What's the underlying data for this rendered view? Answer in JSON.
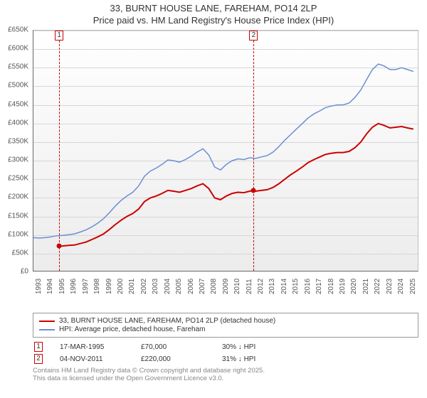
{
  "title_line1": "33, BURNT HOUSE LANE, FAREHAM, PO14 2LP",
  "title_line2": "Price paid vs. HM Land Registry's House Price Index (HPI)",
  "chart": {
    "type": "line",
    "background_gradient_top": "#ffffff",
    "background_gradient_bottom": "#ececec",
    "grid_color": "#d6d6d6",
    "axis_color": "#666666",
    "ylabel_prefix": "£",
    "ylim": [
      0,
      650000
    ],
    "ytick_step": 50000,
    "ytick_labels": [
      "£0",
      "£50K",
      "£100K",
      "£150K",
      "£200K",
      "£250K",
      "£300K",
      "£350K",
      "£400K",
      "£450K",
      "£500K",
      "£550K",
      "£600K",
      "£650K"
    ],
    "xlim": [
      1993,
      2026
    ],
    "xticks": [
      1993,
      1994,
      1995,
      1996,
      1997,
      1998,
      1999,
      2000,
      2001,
      2002,
      2003,
      2004,
      2005,
      2006,
      2007,
      2008,
      2009,
      2010,
      2011,
      2012,
      2013,
      2014,
      2015,
      2016,
      2017,
      2018,
      2019,
      2020,
      2021,
      2022,
      2023,
      2024,
      2025
    ],
    "label_fontsize": 10,
    "title_fontsize": 13,
    "series": [
      {
        "name": "price_paid",
        "label": "33, BURNT HOUSE LANE, FAREHAM, PO14 2LP (detached house)",
        "color": "#cc0000",
        "line_width": 2,
        "data": [
          [
            1995.2,
            70000
          ],
          [
            1995.5,
            70500
          ],
          [
            1996,
            72000
          ],
          [
            1996.5,
            73000
          ],
          [
            1997,
            77000
          ],
          [
            1997.5,
            81000
          ],
          [
            1998,
            88000
          ],
          [
            1998.5,
            95000
          ],
          [
            1999,
            103000
          ],
          [
            1999.5,
            115000
          ],
          [
            2000,
            128000
          ],
          [
            2000.5,
            140000
          ],
          [
            2001,
            150000
          ],
          [
            2001.5,
            158000
          ],
          [
            2002,
            170000
          ],
          [
            2002.5,
            190000
          ],
          [
            2003,
            200000
          ],
          [
            2003.5,
            205000
          ],
          [
            2004,
            212000
          ],
          [
            2004.5,
            220000
          ],
          [
            2005,
            218000
          ],
          [
            2005.5,
            215000
          ],
          [
            2006,
            220000
          ],
          [
            2006.5,
            225000
          ],
          [
            2007,
            232000
          ],
          [
            2007.5,
            238000
          ],
          [
            2008,
            225000
          ],
          [
            2008.5,
            200000
          ],
          [
            2009,
            195000
          ],
          [
            2009.5,
            205000
          ],
          [
            2010,
            212000
          ],
          [
            2010.5,
            215000
          ],
          [
            2011,
            214000
          ],
          [
            2011.5,
            218000
          ],
          [
            2011.84,
            220000
          ],
          [
            2012,
            218000
          ],
          [
            2012.5,
            220000
          ],
          [
            2013,
            222000
          ],
          [
            2013.5,
            228000
          ],
          [
            2014,
            238000
          ],
          [
            2014.5,
            250000
          ],
          [
            2015,
            262000
          ],
          [
            2015.5,
            272000
          ],
          [
            2016,
            283000
          ],
          [
            2016.5,
            295000
          ],
          [
            2017,
            303000
          ],
          [
            2017.5,
            310000
          ],
          [
            2018,
            317000
          ],
          [
            2018.5,
            320000
          ],
          [
            2019,
            322000
          ],
          [
            2019.5,
            322000
          ],
          [
            2020,
            325000
          ],
          [
            2020.5,
            335000
          ],
          [
            2021,
            350000
          ],
          [
            2021.5,
            372000
          ],
          [
            2022,
            390000
          ],
          [
            2022.5,
            400000
          ],
          [
            2023,
            395000
          ],
          [
            2023.5,
            388000
          ],
          [
            2024,
            390000
          ],
          [
            2024.5,
            392000
          ],
          [
            2025,
            388000
          ],
          [
            2025.5,
            385000
          ]
        ]
      },
      {
        "name": "hpi",
        "label": "HPI: Average price, detached house, Fareham",
        "color": "#6b8fd4",
        "line_width": 1.5,
        "data": [
          [
            1993,
            93000
          ],
          [
            1993.5,
            92000
          ],
          [
            1994,
            93000
          ],
          [
            1994.5,
            95000
          ],
          [
            1995,
            98000
          ],
          [
            1995.5,
            99000
          ],
          [
            1996,
            101000
          ],
          [
            1996.5,
            103000
          ],
          [
            1997,
            108000
          ],
          [
            1997.5,
            114000
          ],
          [
            1998,
            122000
          ],
          [
            1998.5,
            132000
          ],
          [
            1999,
            144000
          ],
          [
            1999.5,
            160000
          ],
          [
            2000,
            178000
          ],
          [
            2000.5,
            193000
          ],
          [
            2001,
            205000
          ],
          [
            2001.5,
            215000
          ],
          [
            2002,
            232000
          ],
          [
            2002.5,
            258000
          ],
          [
            2003,
            272000
          ],
          [
            2003.5,
            280000
          ],
          [
            2004,
            290000
          ],
          [
            2004.5,
            302000
          ],
          [
            2005,
            300000
          ],
          [
            2005.5,
            296000
          ],
          [
            2006,
            303000
          ],
          [
            2006.5,
            312000
          ],
          [
            2007,
            323000
          ],
          [
            2007.5,
            332000
          ],
          [
            2008,
            315000
          ],
          [
            2008.5,
            283000
          ],
          [
            2009,
            275000
          ],
          [
            2009.5,
            290000
          ],
          [
            2010,
            300000
          ],
          [
            2010.5,
            305000
          ],
          [
            2011,
            303000
          ],
          [
            2011.5,
            308000
          ],
          [
            2012,
            306000
          ],
          [
            2012.5,
            310000
          ],
          [
            2013,
            314000
          ],
          [
            2013.5,
            323000
          ],
          [
            2014,
            338000
          ],
          [
            2014.5,
            355000
          ],
          [
            2015,
            370000
          ],
          [
            2015.5,
            385000
          ],
          [
            2016,
            400000
          ],
          [
            2016.5,
            415000
          ],
          [
            2017,
            426000
          ],
          [
            2017.5,
            434000
          ],
          [
            2018,
            443000
          ],
          [
            2018.5,
            447000
          ],
          [
            2019,
            450000
          ],
          [
            2019.5,
            450000
          ],
          [
            2020,
            455000
          ],
          [
            2020.5,
            470000
          ],
          [
            2021,
            490000
          ],
          [
            2021.5,
            518000
          ],
          [
            2022,
            545000
          ],
          [
            2022.5,
            560000
          ],
          [
            2023,
            555000
          ],
          [
            2023.5,
            545000
          ],
          [
            2024,
            545000
          ],
          [
            2024.5,
            550000
          ],
          [
            2025,
            545000
          ],
          [
            2025.5,
            540000
          ]
        ]
      }
    ],
    "sale_markers": [
      {
        "n": "1",
        "x": 1995.2,
        "color": "#cc0000"
      },
      {
        "n": "2",
        "x": 2011.84,
        "color": "#cc0000"
      }
    ],
    "sale_points": [
      {
        "x": 1995.2,
        "y": 70000,
        "color": "#cc0000"
      },
      {
        "x": 2011.84,
        "y": 220000,
        "color": "#cc0000"
      }
    ]
  },
  "legend": {
    "series": [
      {
        "color": "#cc0000",
        "label": "33, BURNT HOUSE LANE, FAREHAM, PO14 2LP (detached house)"
      },
      {
        "color": "#6b8fd4",
        "label": "HPI: Average price, detached house, Fareham"
      }
    ]
  },
  "sales_table": {
    "rows": [
      {
        "n": "1",
        "color": "#cc0000",
        "date": "17-MAR-1995",
        "price": "£70,000",
        "delta": "30% ↓ HPI"
      },
      {
        "n": "2",
        "color": "#cc0000",
        "date": "04-NOV-2011",
        "price": "£220,000",
        "delta": "31% ↓ HPI"
      }
    ]
  },
  "attribution": {
    "line1": "Contains HM Land Registry data © Crown copyright and database right 2025.",
    "line2": "This data is licensed under the Open Government Licence v3.0."
  }
}
